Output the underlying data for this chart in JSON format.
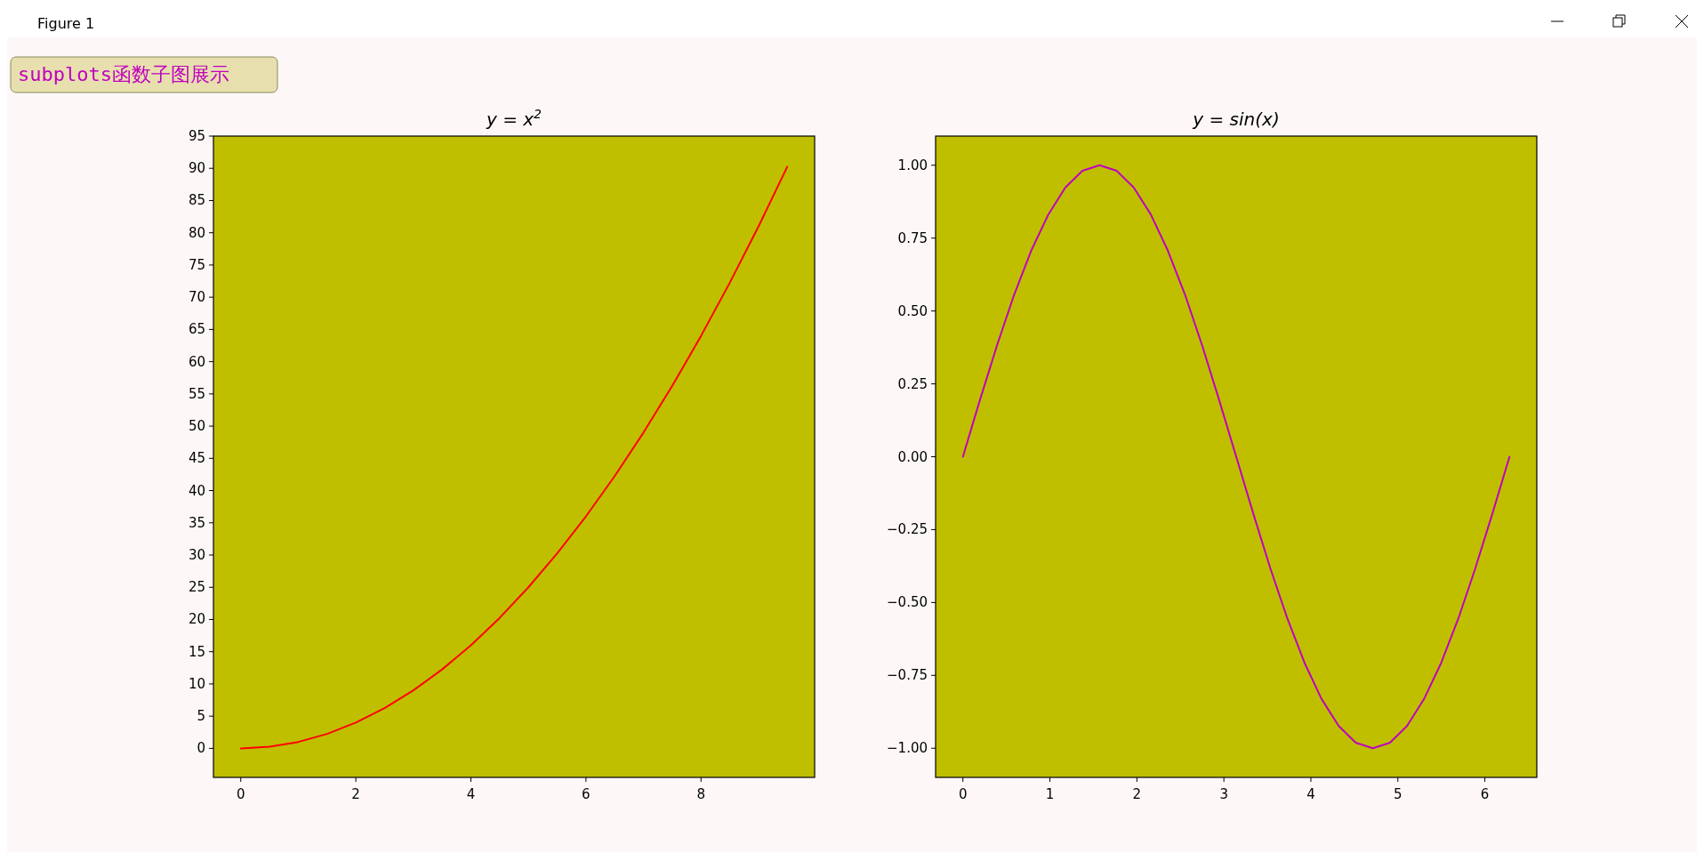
{
  "chart_data": [
    {
      "type": "line",
      "title": "y = x$^{2}$",
      "x": [
        0,
        0.5,
        1,
        1.5,
        2,
        2.5,
        3,
        3.5,
        4,
        4.5,
        5,
        5.5,
        6,
        6.5,
        7,
        7.5,
        8,
        8.5,
        9,
        9.5
      ],
      "values": [
        0,
        0.25,
        1,
        2.25,
        4,
        6.25,
        9,
        12.25,
        16,
        20.25,
        25,
        30.25,
        36,
        42.25,
        49,
        56.25,
        64,
        72.25,
        81,
        90.25
      ],
      "color": "#ff0000",
      "xlim": [
        -0.475,
        9.975
      ],
      "xticks": [
        0,
        2,
        4,
        6,
        8
      ],
      "ylim": [
        -4.5,
        95
      ],
      "yticks": [
        0,
        5,
        10,
        15,
        20,
        25,
        30,
        35,
        40,
        45,
        50,
        55,
        60,
        65,
        70,
        75,
        80,
        85,
        90,
        95
      ],
      "annotations": [
        "Figure 1",
        "subplots函数子图展示"
      ]
    },
    {
      "type": "line",
      "title": "y = sin(x)",
      "x": [
        0,
        0.196,
        0.393,
        0.589,
        0.785,
        0.982,
        1.178,
        1.374,
        1.571,
        1.767,
        1.963,
        2.16,
        2.356,
        2.553,
        2.749,
        2.945,
        3.142,
        3.338,
        3.534,
        3.731,
        3.927,
        4.123,
        4.32,
        4.516,
        4.712,
        4.909,
        5.105,
        5.301,
        5.498,
        5.694,
        5.89,
        6.087,
        6.283
      ],
      "values": [
        0,
        0.195,
        0.383,
        0.556,
        0.707,
        0.831,
        0.924,
        0.981,
        1,
        0.981,
        0.924,
        0.831,
        0.707,
        0.556,
        0.383,
        0.195,
        0,
        -0.195,
        -0.383,
        -0.556,
        -0.707,
        -0.831,
        -0.924,
        -0.981,
        -1,
        -0.981,
        -0.924,
        -0.831,
        -0.707,
        -0.556,
        -0.383,
        -0.195,
        0
      ],
      "color": "#bf00bf",
      "xlim": [
        -0.314,
        6.597
      ],
      "xticks": [
        0,
        1,
        2,
        3,
        4,
        5,
        6
      ],
      "ylim": [
        -1.1,
        1.1
      ],
      "yticks": [
        {
          "value": -1,
          "label": "−1.00"
        },
        {
          "value": -0.75,
          "label": "−0.75"
        },
        {
          "value": -0.5,
          "label": "−0.50"
        },
        {
          "value": -0.25,
          "label": "−0.25"
        },
        {
          "value": 0,
          "label": "0.00"
        },
        {
          "value": 0.25,
          "label": "0.25"
        },
        {
          "value": 0.5,
          "label": "0.50"
        },
        {
          "value": 0.75,
          "label": "0.75"
        },
        {
          "value": 1,
          "label": "1.00"
        }
      ]
    }
  ]
}
